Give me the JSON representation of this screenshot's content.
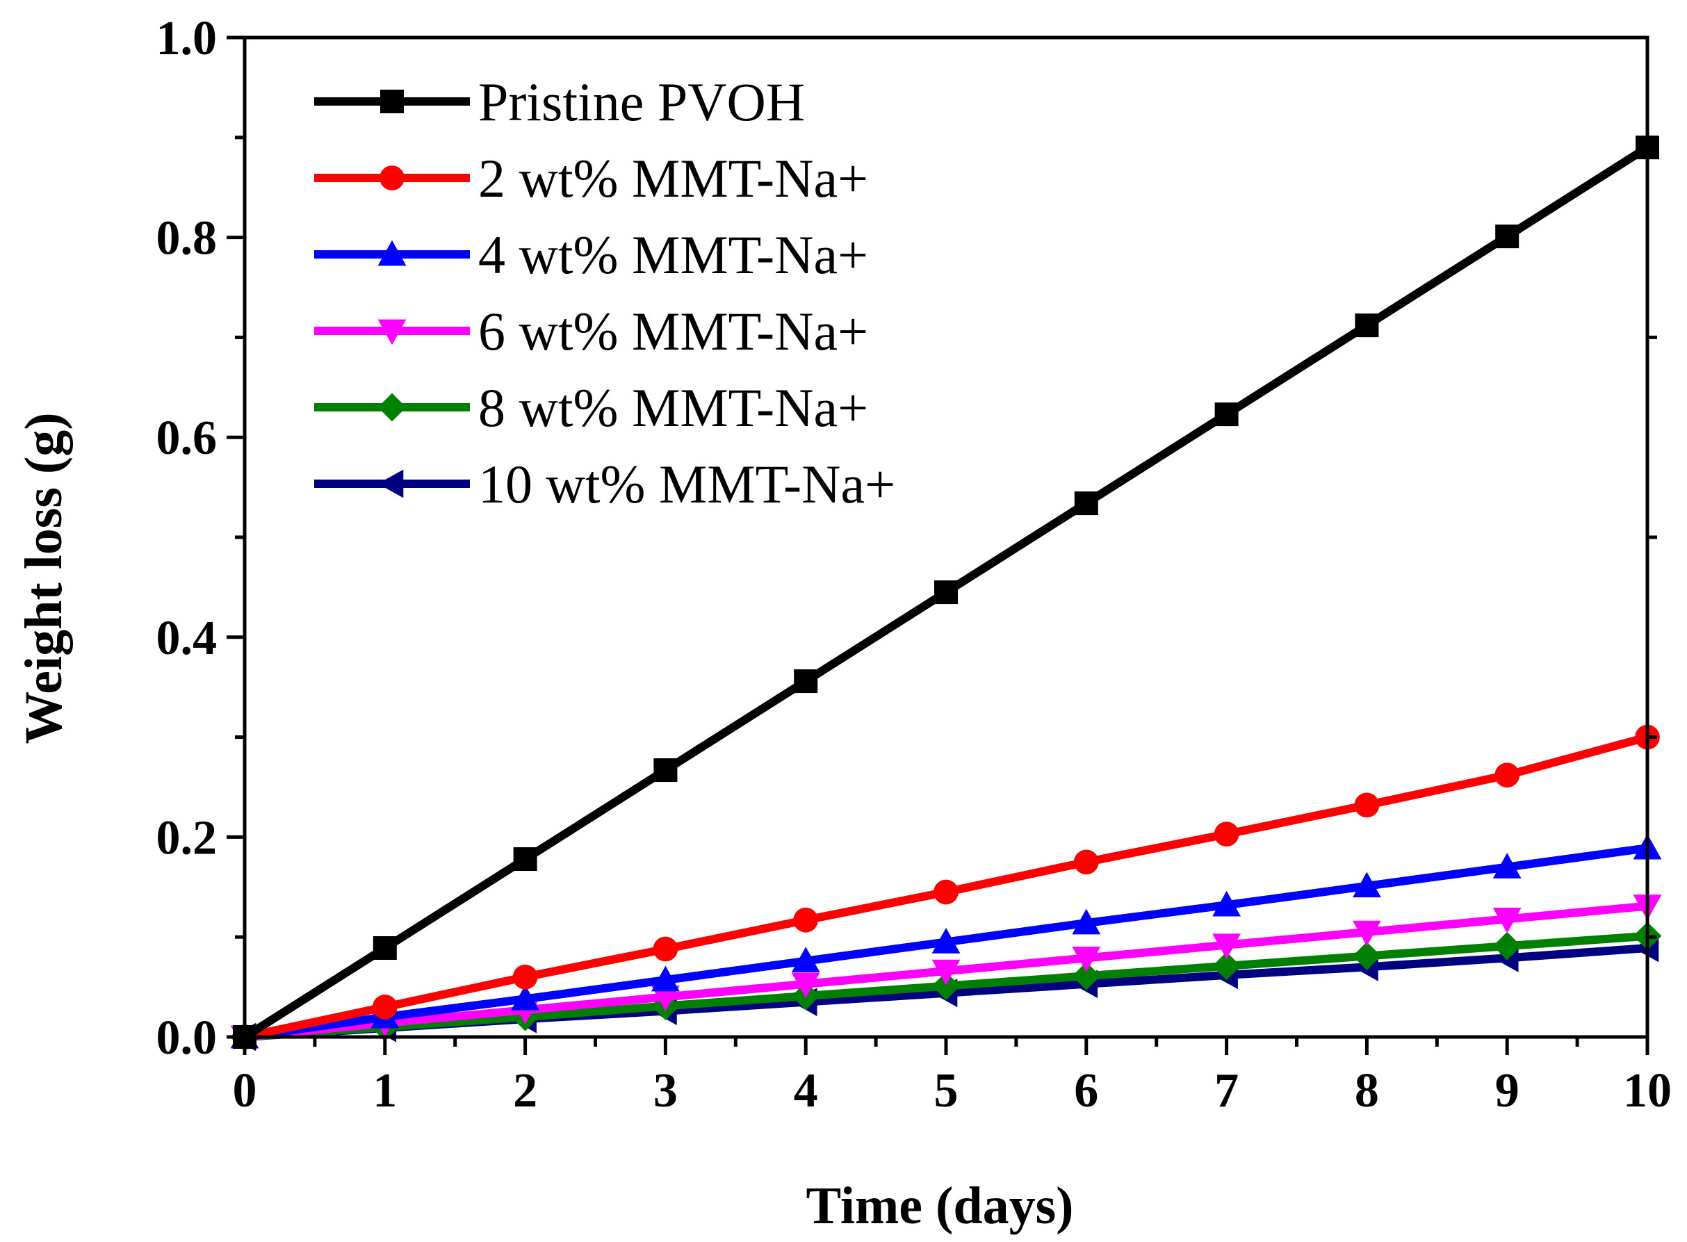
{
  "chart_data": {
    "type": "line",
    "title": "",
    "xlabel": "Time (days)",
    "ylabel": "Weight loss (g)",
    "xlim": [
      0,
      10
    ],
    "ylim": [
      0,
      1.0
    ],
    "xticks": [
      0,
      1,
      2,
      3,
      4,
      5,
      6,
      7,
      8,
      9,
      10
    ],
    "xtick_labels": [
      "0",
      "1",
      "2",
      "3",
      "4",
      "5",
      "6",
      "7",
      "8",
      "9",
      "10"
    ],
    "yticks": [
      0,
      0.2,
      0.4,
      0.6,
      0.8,
      1.0
    ],
    "ytick_labels": [
      "0.0",
      "0.2",
      "0.4",
      "0.6",
      "0.8",
      "1.0"
    ],
    "grid": false,
    "legend_position": "top-left",
    "x": [
      0,
      1,
      2,
      3,
      4,
      5,
      6,
      7,
      8,
      9,
      10
    ],
    "series": [
      {
        "name": "Pristine PVOH",
        "color": "#000000",
        "marker": "square",
        "values": [
          0.0,
          0.089,
          0.178,
          0.267,
          0.356,
          0.445,
          0.534,
          0.623,
          0.712,
          0.801,
          0.89
        ]
      },
      {
        "name": "2 wt% MMT-Na+",
        "color": "#ff0000",
        "marker": "circle",
        "values": [
          0.0,
          0.03,
          0.06,
          0.088,
          0.117,
          0.145,
          0.175,
          0.203,
          0.232,
          0.262,
          0.3
        ]
      },
      {
        "name": "4 wt% MMT-Na+",
        "color": "#0000ff",
        "marker": "triangle-up",
        "values": [
          0.0,
          0.02,
          0.038,
          0.057,
          0.076,
          0.095,
          0.114,
          0.132,
          0.151,
          0.17,
          0.189
        ]
      },
      {
        "name": "6 wt% MMT-Na+",
        "color": "#ff00ff",
        "marker": "triangle-down",
        "values": [
          0.0,
          0.014,
          0.027,
          0.04,
          0.053,
          0.066,
          0.079,
          0.092,
          0.105,
          0.118,
          0.131
        ]
      },
      {
        "name": "8 wt% MMT-Na+",
        "color": "#008000",
        "marker": "diamond",
        "values": [
          0.0,
          0.01,
          0.02,
          0.031,
          0.041,
          0.051,
          0.061,
          0.071,
          0.081,
          0.091,
          0.101
        ]
      },
      {
        "name": "10 wt% MMT-Na+",
        "color": "#000080",
        "marker": "triangle-left",
        "values": [
          0.0,
          0.009,
          0.018,
          0.026,
          0.035,
          0.044,
          0.053,
          0.062,
          0.07,
          0.079,
          0.089
        ]
      }
    ]
  }
}
